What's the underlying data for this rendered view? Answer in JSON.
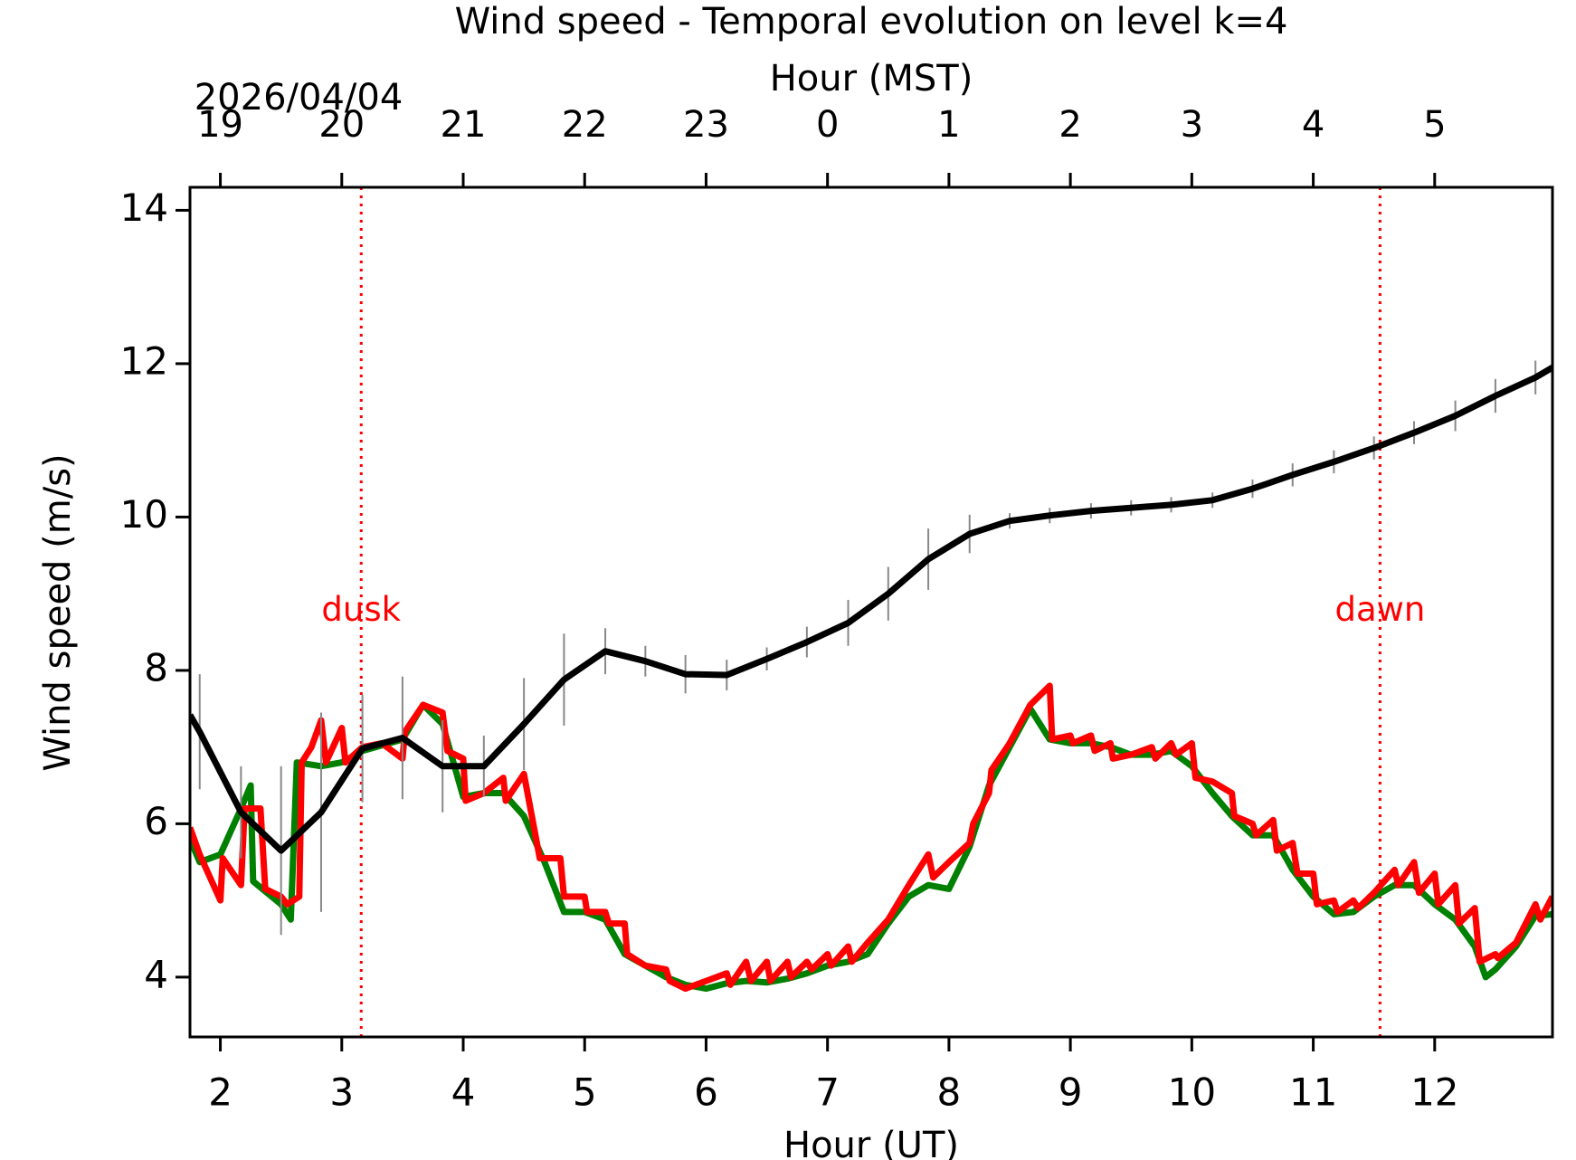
{
  "chart_data": {
    "type": "line",
    "title": "Wind speed - Temporal evolution on level k=4",
    "xlabel": "Hour (UT)",
    "ylabel": "Wind speed (m/s)",
    "x2label": "Hour (MST)",
    "date_label": "2026/04/04",
    "xlim": [
      1.75,
      12.97
    ],
    "ylim": [
      3.22,
      14.3
    ],
    "xticks": [
      2,
      3,
      4,
      5,
      6,
      7,
      8,
      9,
      10,
      11,
      12
    ],
    "yticks": [
      4,
      6,
      8,
      10,
      12,
      14
    ],
    "x2ticks": [
      {
        "value": 2,
        "label": "19"
      },
      {
        "value": 3,
        "label": "20"
      },
      {
        "value": 4,
        "label": "21"
      },
      {
        "value": 5,
        "label": "22"
      },
      {
        "value": 6,
        "label": "23"
      },
      {
        "value": 7,
        "label": "0"
      },
      {
        "value": 8,
        "label": "1"
      },
      {
        "value": 9,
        "label": "2"
      },
      {
        "value": 10,
        "label": "3"
      },
      {
        "value": 11,
        "label": "4"
      },
      {
        "value": 12,
        "label": "5"
      }
    ],
    "annotations": [
      {
        "text": "dusk",
        "x": 3.16,
        "y": 8.77,
        "color": "#ff0000"
      },
      {
        "text": "dawn",
        "x": 11.55,
        "y": 8.77,
        "color": "#ff0000"
      }
    ],
    "series": [
      {
        "color": "#008000",
        "error_color": "#9cc98c",
        "x": [
          1.75,
          1.83,
          2.0,
          2.17,
          2.25,
          2.27,
          2.5,
          2.58,
          2.63,
          2.83,
          3.0,
          3.17,
          3.5,
          3.67,
          3.83,
          4.0,
          4.17,
          4.33,
          4.5,
          4.67,
          4.83,
          5.0,
          5.17,
          5.33,
          5.5,
          5.67,
          5.83,
          6.0,
          6.17,
          6.33,
          6.5,
          6.67,
          6.83,
          7.0,
          7.17,
          7.33,
          7.5,
          7.67,
          7.83,
          8.0,
          8.17,
          8.33,
          8.5,
          8.67,
          8.83,
          9.0,
          9.17,
          9.33,
          9.5,
          9.67,
          9.83,
          10.0,
          10.17,
          10.33,
          10.5,
          10.67,
          10.83,
          11.0,
          11.17,
          11.33,
          11.5,
          11.67,
          11.83,
          12.0,
          12.17,
          12.33,
          12.42,
          12.5,
          12.67,
          12.83,
          12.97
        ],
        "values": [
          5.8,
          5.5,
          5.6,
          6.2,
          6.5,
          5.25,
          4.95,
          4.75,
          6.8,
          6.75,
          6.8,
          6.95,
          7.1,
          7.55,
          7.3,
          6.35,
          6.4,
          6.4,
          6.1,
          5.5,
          4.85,
          4.85,
          4.75,
          4.3,
          4.15,
          4.0,
          3.9,
          3.85,
          3.92,
          3.95,
          3.93,
          3.98,
          4.05,
          4.15,
          4.2,
          4.3,
          4.7,
          5.05,
          5.2,
          5.15,
          5.7,
          6.5,
          7.0,
          7.5,
          7.1,
          7.05,
          7.05,
          7.0,
          6.9,
          6.9,
          6.95,
          6.75,
          6.4,
          6.1,
          5.85,
          5.85,
          5.4,
          5.05,
          4.82,
          4.85,
          5.05,
          5.2,
          5.2,
          4.95,
          4.75,
          4.4,
          4.0,
          4.1,
          4.4,
          4.8,
          4.82
        ]
      },
      {
        "color": "#ff0000",
        "x": [
          1.75,
          1.83,
          2.0,
          2.02,
          2.17,
          2.2,
          2.33,
          2.37,
          2.5,
          2.55,
          2.65,
          2.67,
          2.75,
          2.83,
          2.87,
          3.0,
          3.03,
          3.17,
          3.33,
          3.5,
          3.52,
          3.67,
          3.83,
          3.87,
          4.0,
          4.02,
          4.17,
          4.33,
          4.35,
          4.5,
          4.63,
          4.8,
          4.83,
          5.0,
          5.02,
          5.17,
          5.2,
          5.33,
          5.35,
          5.5,
          5.67,
          5.7,
          5.83,
          6.0,
          6.17,
          6.2,
          6.33,
          6.37,
          6.5,
          6.53,
          6.67,
          6.7,
          6.83,
          6.87,
          7.0,
          7.03,
          7.17,
          7.2,
          7.33,
          7.5,
          7.67,
          7.83,
          7.87,
          8.0,
          8.17,
          8.2,
          8.33,
          8.35,
          8.5,
          8.67,
          8.83,
          8.85,
          9.0,
          9.02,
          9.17,
          9.2,
          9.33,
          9.35,
          9.5,
          9.67,
          9.7,
          9.83,
          9.87,
          10.0,
          10.03,
          10.17,
          10.33,
          10.35,
          10.5,
          10.53,
          10.67,
          10.7,
          10.83,
          10.87,
          11.0,
          11.03,
          11.17,
          11.2,
          11.33,
          11.37,
          11.5,
          11.67,
          11.7,
          11.83,
          11.87,
          12.0,
          12.03,
          12.17,
          12.2,
          12.33,
          12.37,
          12.5,
          12.52,
          12.67,
          12.83,
          12.87,
          12.97
        ],
        "values": [
          5.95,
          5.6,
          5.0,
          5.55,
          5.2,
          6.2,
          6.2,
          5.15,
          5.05,
          4.95,
          5.05,
          6.8,
          7.0,
          7.35,
          6.8,
          7.25,
          6.8,
          7.0,
          7.05,
          6.85,
          7.2,
          7.55,
          7.45,
          6.95,
          6.85,
          6.3,
          6.4,
          6.6,
          6.3,
          6.65,
          5.55,
          5.55,
          5.05,
          5.05,
          4.85,
          4.85,
          4.7,
          4.7,
          4.3,
          4.15,
          4.1,
          3.95,
          3.85,
          3.95,
          4.05,
          3.9,
          4.2,
          3.95,
          4.2,
          3.95,
          4.2,
          4.0,
          4.2,
          4.1,
          4.3,
          4.15,
          4.4,
          4.2,
          4.45,
          4.75,
          5.2,
          5.6,
          5.3,
          5.5,
          5.75,
          6.0,
          6.4,
          6.7,
          7.05,
          7.55,
          7.8,
          7.1,
          7.15,
          7.05,
          7.15,
          6.95,
          7.05,
          6.85,
          6.9,
          7.0,
          6.85,
          7.05,
          6.9,
          7.05,
          6.6,
          6.55,
          6.4,
          6.1,
          6.0,
          5.85,
          6.05,
          5.65,
          5.75,
          5.35,
          5.35,
          4.95,
          5.0,
          4.85,
          5.0,
          4.9,
          5.1,
          5.4,
          5.2,
          5.5,
          5.1,
          5.35,
          4.95,
          5.2,
          4.7,
          4.9,
          4.2,
          4.3,
          4.25,
          4.45,
          4.95,
          4.75,
          5.05
        ]
      },
      {
        "color": "#000000",
        "error_color": "#888888",
        "x": [
          1.75,
          1.83,
          2.17,
          2.5,
          2.83,
          3.17,
          3.5,
          3.83,
          4.17,
          4.5,
          4.83,
          5.17,
          5.5,
          5.83,
          6.17,
          6.5,
          6.83,
          7.17,
          7.5,
          7.83,
          8.17,
          8.5,
          8.83,
          9.17,
          9.5,
          9.83,
          10.17,
          10.5,
          10.83,
          11.17,
          11.5,
          11.83,
          12.17,
          12.5,
          12.83,
          12.97
        ],
        "values": [
          7.42,
          7.2,
          6.15,
          5.65,
          6.15,
          6.98,
          7.12,
          6.75,
          6.75,
          7.3,
          7.88,
          8.25,
          8.12,
          7.95,
          7.94,
          8.15,
          8.37,
          8.62,
          9.0,
          9.45,
          9.78,
          9.95,
          10.02,
          10.08,
          10.12,
          10.16,
          10.22,
          10.37,
          10.55,
          10.72,
          10.9,
          11.1,
          11.32,
          11.58,
          11.82,
          11.95
        ],
        "errors": [
          null,
          0.75,
          0.6,
          1.1,
          1.3,
          0.7,
          0.8,
          0.6,
          0.4,
          0.6,
          0.6,
          0.3,
          0.2,
          0.25,
          0.2,
          0.15,
          0.2,
          0.3,
          0.35,
          0.4,
          0.25,
          0.1,
          0.1,
          0.1,
          0.1,
          0.1,
          0.1,
          0.12,
          0.15,
          0.15,
          0.15,
          0.15,
          0.2,
          0.22,
          0.22,
          null
        ]
      }
    ]
  }
}
